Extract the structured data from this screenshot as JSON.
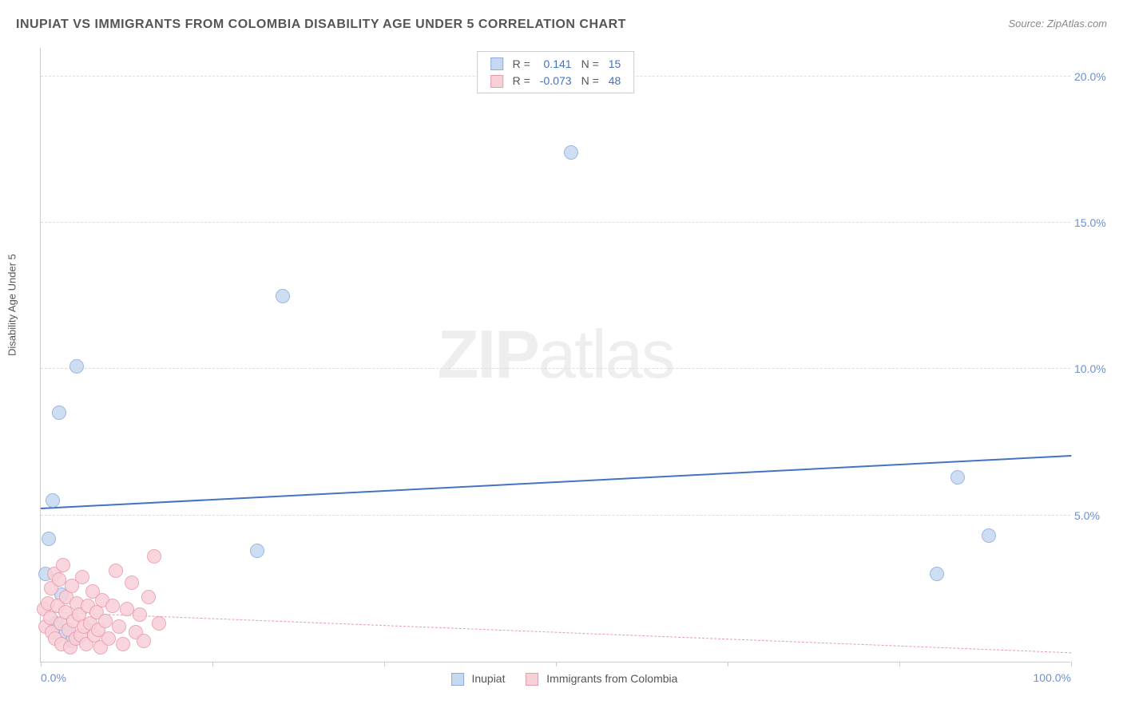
{
  "title": "INUPIAT VS IMMIGRANTS FROM COLOMBIA DISABILITY AGE UNDER 5 CORRELATION CHART",
  "source": "Source: ZipAtlas.com",
  "ylabel": "Disability Age Under 5",
  "watermark_bold": "ZIP",
  "watermark_rest": "atlas",
  "chart": {
    "type": "scatter",
    "plot_background": "#ffffff",
    "grid_color": "#dddddd",
    "axis_color": "#cccccc",
    "xlim": [
      0,
      100
    ],
    "ylim": [
      0,
      21
    ],
    "xtick_positions": [
      0,
      16.67,
      33.33,
      50,
      66.67,
      83.33,
      100
    ],
    "xtick_labels": [
      "0.0%",
      "",
      "",
      "",
      "",
      "",
      "100.0%"
    ],
    "ytick_positions": [
      5,
      10,
      15,
      20
    ],
    "ytick_labels": [
      "5.0%",
      "10.0%",
      "15.0%",
      "20.0%"
    ],
    "series": [
      {
        "name": "Inupiat",
        "color_fill": "#c5d9f1",
        "color_stroke": "#8faadc",
        "marker_radius": 9,
        "R": "0.141",
        "N": "15",
        "trend": {
          "x1": 0,
          "y1": 5.2,
          "x2": 100,
          "y2": 7.0,
          "color": "#4472c4",
          "width": 2,
          "dash": false
        },
        "points": [
          {
            "x": 0.5,
            "y": 3.0
          },
          {
            "x": 0.8,
            "y": 4.2
          },
          {
            "x": 1.2,
            "y": 5.5
          },
          {
            "x": 1.5,
            "y": 1.3
          },
          {
            "x": 1.8,
            "y": 8.5
          },
          {
            "x": 2.0,
            "y": 2.3
          },
          {
            "x": 2.5,
            "y": 1.0
          },
          {
            "x": 3.0,
            "y": 0.7
          },
          {
            "x": 3.5,
            "y": 10.1
          },
          {
            "x": 21.0,
            "y": 3.8
          },
          {
            "x": 23.5,
            "y": 12.5
          },
          {
            "x": 51.5,
            "y": 17.4
          },
          {
            "x": 87.0,
            "y": 3.0
          },
          {
            "x": 89.0,
            "y": 6.3
          },
          {
            "x": 92.0,
            "y": 4.3
          }
        ]
      },
      {
        "name": "Immigrants from Colombia",
        "color_fill": "#f8d0d8",
        "color_stroke": "#e89aad",
        "marker_radius": 9,
        "R": "-0.073",
        "N": "48",
        "trend": {
          "x1": 0,
          "y1": 1.7,
          "x2": 100,
          "y2": 0.3,
          "color": "#e89aad",
          "width": 1.5,
          "dash": true
        },
        "points": [
          {
            "x": 0.3,
            "y": 1.8
          },
          {
            "x": 0.5,
            "y": 1.2
          },
          {
            "x": 0.7,
            "y": 2.0
          },
          {
            "x": 0.9,
            "y": 1.5
          },
          {
            "x": 1.0,
            "y": 2.5
          },
          {
            "x": 1.1,
            "y": 1.0
          },
          {
            "x": 1.3,
            "y": 3.0
          },
          {
            "x": 1.4,
            "y": 0.8
          },
          {
            "x": 1.6,
            "y": 1.9
          },
          {
            "x": 1.8,
            "y": 2.8
          },
          {
            "x": 1.9,
            "y": 1.3
          },
          {
            "x": 2.0,
            "y": 0.6
          },
          {
            "x": 2.2,
            "y": 3.3
          },
          {
            "x": 2.4,
            "y": 1.7
          },
          {
            "x": 2.5,
            "y": 2.2
          },
          {
            "x": 2.7,
            "y": 1.1
          },
          {
            "x": 2.9,
            "y": 0.5
          },
          {
            "x": 3.0,
            "y": 2.6
          },
          {
            "x": 3.2,
            "y": 1.4
          },
          {
            "x": 3.4,
            "y": 0.8
          },
          {
            "x": 3.5,
            "y": 2.0
          },
          {
            "x": 3.7,
            "y": 1.6
          },
          {
            "x": 3.9,
            "y": 0.9
          },
          {
            "x": 4.0,
            "y": 2.9
          },
          {
            "x": 4.2,
            "y": 1.2
          },
          {
            "x": 4.4,
            "y": 0.6
          },
          {
            "x": 4.6,
            "y": 1.9
          },
          {
            "x": 4.8,
            "y": 1.3
          },
          {
            "x": 5.0,
            "y": 2.4
          },
          {
            "x": 5.2,
            "y": 0.9
          },
          {
            "x": 5.4,
            "y": 1.7
          },
          {
            "x": 5.6,
            "y": 1.1
          },
          {
            "x": 5.8,
            "y": 0.5
          },
          {
            "x": 6.0,
            "y": 2.1
          },
          {
            "x": 6.3,
            "y": 1.4
          },
          {
            "x": 6.6,
            "y": 0.8
          },
          {
            "x": 7.0,
            "y": 1.9
          },
          {
            "x": 7.3,
            "y": 3.1
          },
          {
            "x": 7.6,
            "y": 1.2
          },
          {
            "x": 8.0,
            "y": 0.6
          },
          {
            "x": 8.4,
            "y": 1.8
          },
          {
            "x": 8.8,
            "y": 2.7
          },
          {
            "x": 9.2,
            "y": 1.0
          },
          {
            "x": 9.6,
            "y": 1.6
          },
          {
            "x": 10.0,
            "y": 0.7
          },
          {
            "x": 10.5,
            "y": 2.2
          },
          {
            "x": 11.0,
            "y": 3.6
          },
          {
            "x": 11.5,
            "y": 1.3
          }
        ]
      }
    ]
  },
  "legend_top": {
    "r_label": "R =",
    "n_label": "N ="
  },
  "legend_bottom": {
    "items": [
      "Inupiat",
      "Immigrants from Colombia"
    ]
  }
}
